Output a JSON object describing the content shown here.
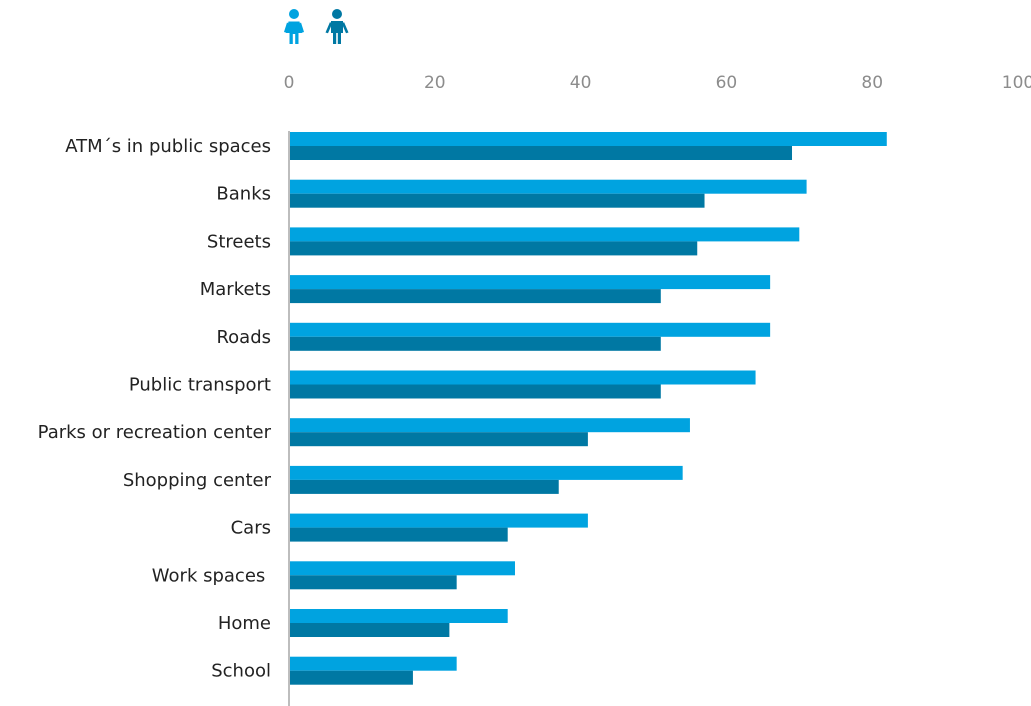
{
  "chart_data": {
    "type": "bar",
    "orientation": "horizontal",
    "categories": [
      "ATM´s in public spaces",
      "Banks",
      "Streets",
      "Markets",
      "Roads",
      "Public transport",
      "Parks or recreation center",
      "Shopping center",
      "Cars",
      "Work spaces ",
      "Home",
      "School"
    ],
    "series": [
      {
        "icon": "female-person-icon",
        "color": "#00a3e0",
        "values": [
          82,
          71,
          70,
          66,
          66,
          64,
          55,
          54,
          41,
          31,
          30,
          23
        ]
      },
      {
        "icon": "male-person-icon",
        "color": "#0078a3",
        "values": [
          69,
          57,
          56,
          51,
          51,
          51,
          41,
          37,
          30,
          23,
          22,
          17
        ]
      }
    ],
    "xticks": [
      0,
      20,
      40,
      60,
      80,
      100
    ],
    "xlim": [
      0,
      100
    ],
    "axis_position": "top",
    "grid": false,
    "legend": "icons top-left"
  }
}
